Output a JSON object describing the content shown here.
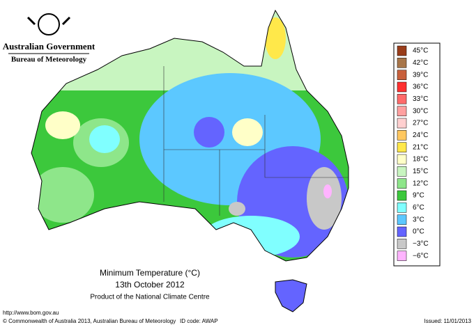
{
  "header": {
    "title": "Australian Government",
    "subtitle": "Bureau of Meteorology"
  },
  "caption": {
    "title": "Minimum Temperature (°C)",
    "date": "13th October 2012",
    "source": "Product of the National Climate Centre"
  },
  "legend": {
    "items": [
      {
        "label": "45°C",
        "color": "#993d1a"
      },
      {
        "label": "42°C",
        "color": "#a8764a"
      },
      {
        "label": "39°C",
        "color": "#c8603c"
      },
      {
        "label": "36°C",
        "color": "#ff3030"
      },
      {
        "label": "33°C",
        "color": "#ff6a6a"
      },
      {
        "label": "30°C",
        "color": "#ffa0a0"
      },
      {
        "label": "27°C",
        "color": "#ffd0d0"
      },
      {
        "label": "24°C",
        "color": "#ffc860"
      },
      {
        "label": "21°C",
        "color": "#ffe84a"
      },
      {
        "label": "18°C",
        "color": "#ffffc8"
      },
      {
        "label": "15°C",
        "color": "#c8f5c0"
      },
      {
        "label": "12°C",
        "color": "#8ee68a"
      },
      {
        "label": "9°C",
        "color": "#3cc83c"
      },
      {
        "label": "6°C",
        "color": "#80ffff"
      },
      {
        "label": "3°C",
        "color": "#5cc8ff"
      },
      {
        "label": "0°C",
        "color": "#6464ff"
      },
      {
        "label": "−3°C",
        "color": "#c8c8c8"
      },
      {
        "label": "−6°C",
        "color": "#ffb4ff"
      }
    ]
  },
  "footer": {
    "url": "http://www.bom.gov.au",
    "copyright": "© Commonwealth of Australia 2013, Australian Bureau of Meteorology",
    "id_code": "ID code: AWAP",
    "issued": "Issued: 11/01/2013"
  }
}
